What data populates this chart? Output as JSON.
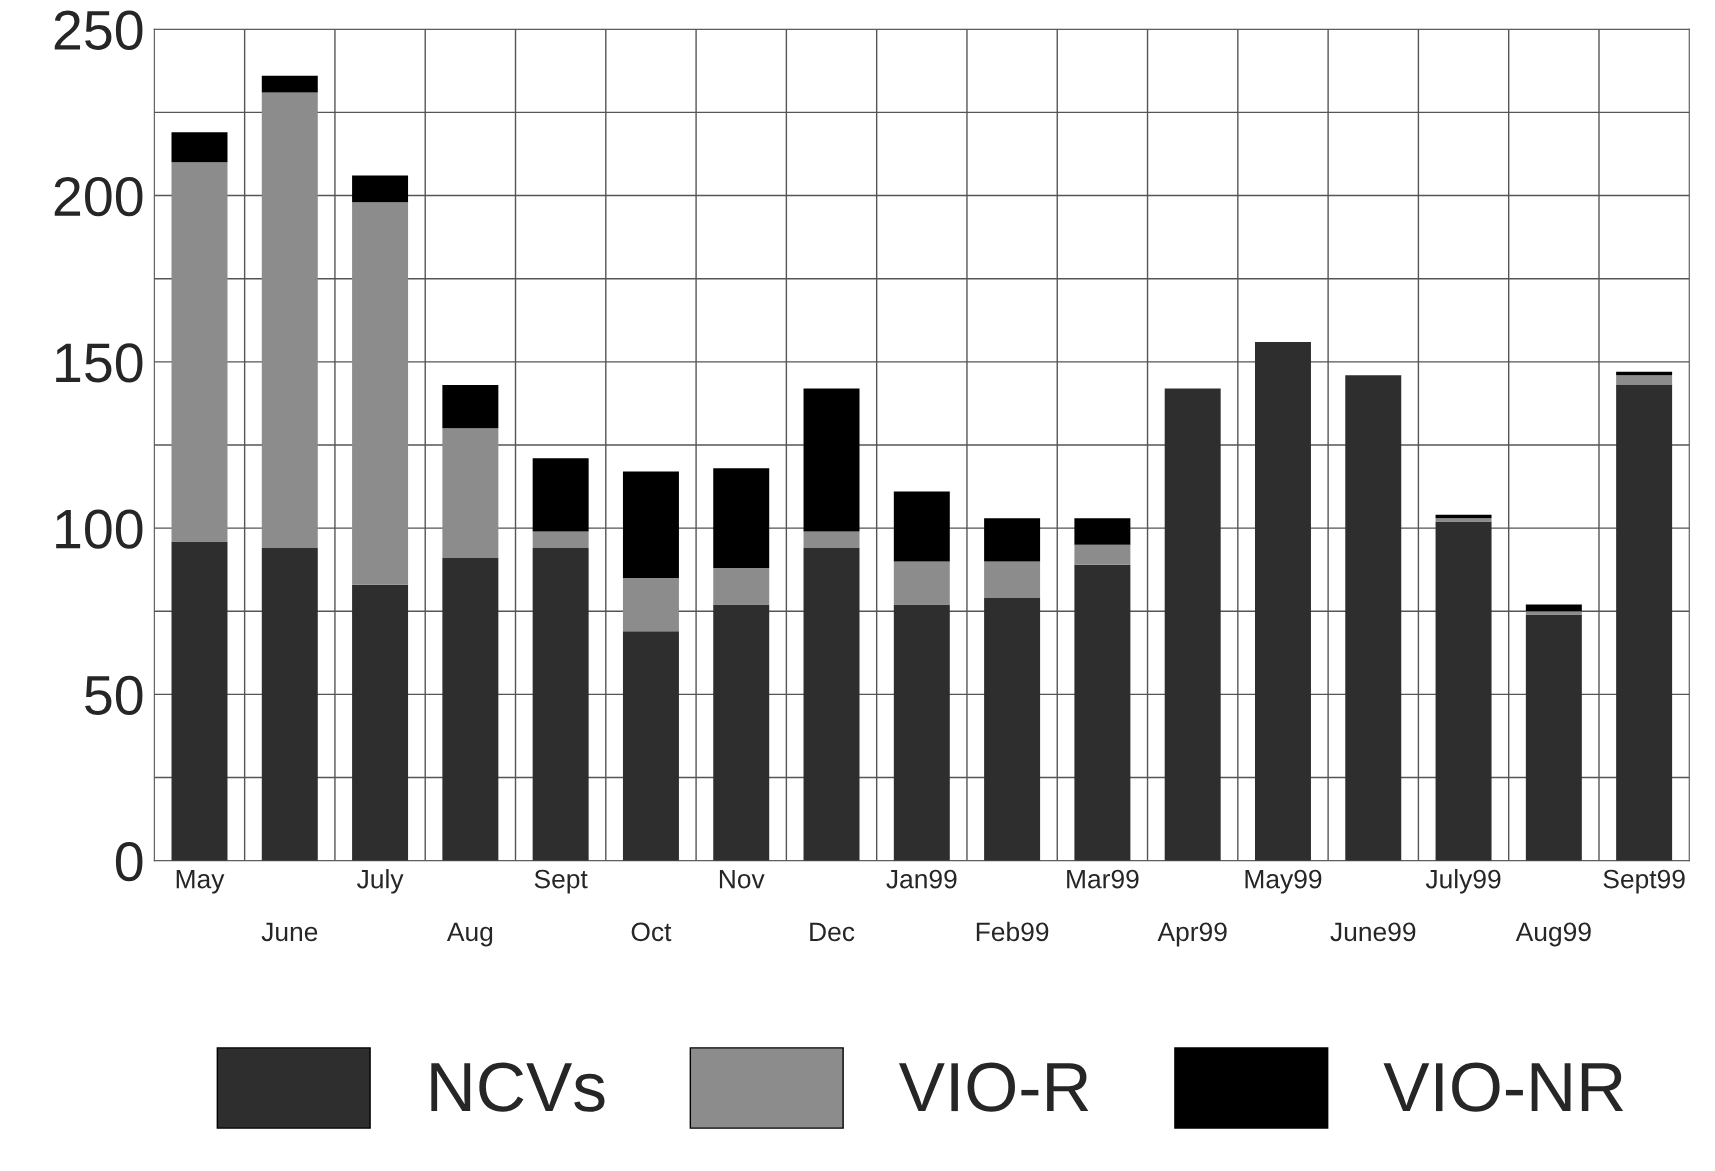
{
  "chart_data": {
    "type": "bar",
    "stacked": true,
    "categories": [
      "May",
      "June",
      "July",
      "Aug",
      "Sept",
      "Oct",
      "Nov",
      "Dec",
      "Jan99",
      "Feb99",
      "Mar99",
      "Apr99",
      "May99",
      "June99",
      "July99",
      "Aug99",
      "Sept99"
    ],
    "series": [
      {
        "name": "NCVs",
        "color": "#2e2e2e",
        "values": [
          96,
          94,
          83,
          91,
          94,
          69,
          77,
          94,
          77,
          79,
          89,
          142,
          156,
          146,
          102,
          74,
          143
        ]
      },
      {
        "name": "VIO-R",
        "color": "#8c8c8c",
        "values": [
          114,
          137,
          115,
          39,
          5,
          16,
          11,
          5,
          13,
          11,
          6,
          null,
          null,
          null,
          1,
          1,
          3
        ]
      },
      {
        "name": "VIO-NR",
        "color": "#000000",
        "values": [
          9,
          5,
          8,
          13,
          22,
          32,
          30,
          43,
          21,
          13,
          8,
          null,
          null,
          null,
          1,
          2,
          1
        ]
      }
    ],
    "ylim": [
      0,
      250
    ],
    "yticks": [
      0,
      50,
      100,
      150,
      200,
      250
    ],
    "grid": true,
    "legend": "bottom"
  }
}
